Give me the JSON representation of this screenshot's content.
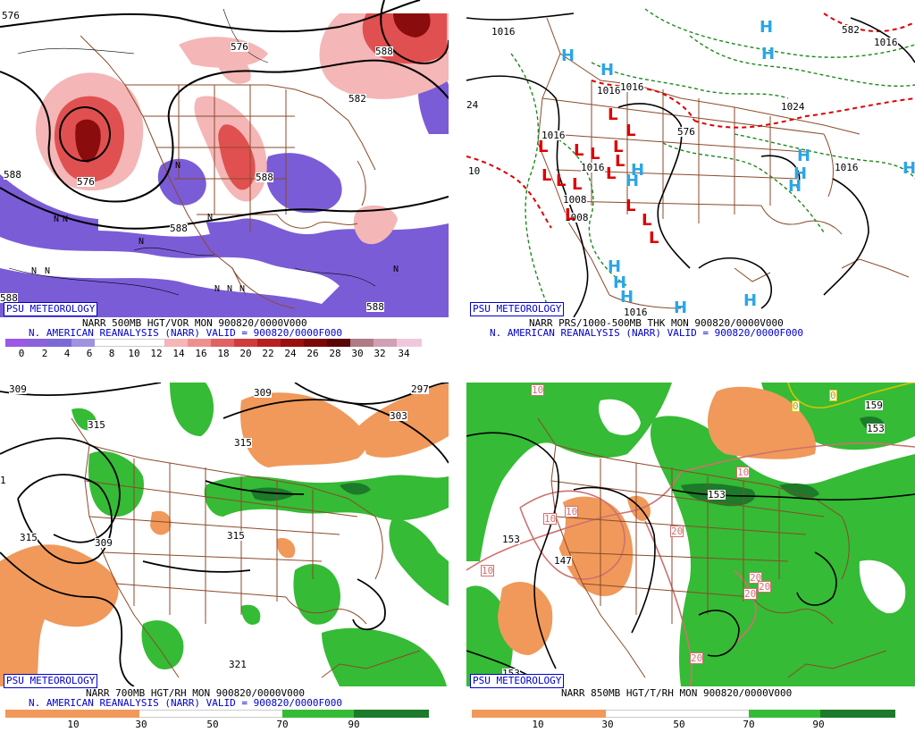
{
  "badge": "PSU METEOROLOGY",
  "colors": {
    "purple": "#7a5cd6",
    "lightpink": "#f4b6b6",
    "red": "#e05050",
    "darkred": "#8a0c0c",
    "orange": "#f0995a",
    "green": "#35bb35",
    "darkgreen": "#1c7a2a",
    "brown": "#8b4a2b",
    "hblue": "#2aa6e8",
    "lred": "#dd0000",
    "captionblue": "#0000cc"
  },
  "panels": [
    {
      "caption1": "NARR 500MB HGT/VOR MON 900820/0000V000",
      "caption2": "N. AMERICAN REANALYSIS (NARR) VALID = 900820/0000F000",
      "scale": [
        "0",
        "2",
        "4",
        "6",
        "8",
        "10",
        "12",
        "14",
        "16",
        "18",
        "20",
        "22",
        "24",
        "26",
        "28",
        "30",
        "32",
        "34"
      ],
      "contour_labels": [
        "576",
        "576",
        "588",
        "576",
        "588",
        "588",
        "588",
        "582",
        "588",
        "588"
      ],
      "symbol_text": "N"
    },
    {
      "caption1": "NARR PRS/1000-500MB THK MON 900820/0000V000",
      "caption2": "N. AMERICAN REANALYSIS (NARR) VALID = 900820/0000F000",
      "contour_labels": [
        "1016",
        "1016",
        "1016",
        "1016",
        "1024",
        "1016",
        "1016",
        "1008",
        "1008",
        "1016",
        "576",
        "24",
        "10",
        "582",
        "1016"
      ],
      "high_symbol": "H",
      "low_symbol": "L"
    },
    {
      "caption1": "NARR 700MB HGT/RH MON 900820/0000V000",
      "caption2": "N. AMERICAN REANALYSIS (NARR) VALID = 900820/0000F000",
      "scale": [
        "10",
        "30",
        "50",
        "70",
        "90"
      ],
      "contour_labels": [
        "309",
        "309",
        "297",
        "315",
        "303",
        "315",
        "315",
        "309",
        "315",
        "321",
        "1"
      ]
    },
    {
      "caption1": "NARR 850MB HGT/T/RH MON 900820/0000V000",
      "caption2": "",
      "scale": [
        "10",
        "30",
        "50",
        "70",
        "90"
      ],
      "contour_labels": [
        "10",
        "10",
        "10",
        "10",
        "10",
        "20",
        "20",
        "20",
        "20",
        "20",
        "0",
        "0",
        "153",
        "153",
        "147",
        "153",
        "153",
        "159"
      ]
    }
  ]
}
